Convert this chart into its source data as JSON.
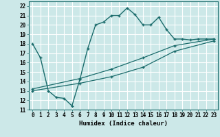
{
  "xlabel": "Humidex (Indice chaleur)",
  "xlim": [
    -0.5,
    23.5
  ],
  "ylim": [
    11,
    22.5
  ],
  "yticks": [
    11,
    12,
    13,
    14,
    15,
    16,
    17,
    18,
    19,
    20,
    21,
    22
  ],
  "xticks": [
    0,
    1,
    2,
    3,
    4,
    5,
    6,
    7,
    8,
    9,
    10,
    11,
    12,
    13,
    14,
    15,
    16,
    17,
    18,
    19,
    20,
    21,
    22,
    23
  ],
  "bg_color": "#cce8e8",
  "grid_color": "#ffffff",
  "line_color": "#1a6b6b",
  "line1_x": [
    0,
    1,
    2,
    3,
    4,
    5,
    6,
    7,
    8,
    9,
    10,
    11,
    12,
    13,
    14,
    15,
    16,
    17,
    18,
    19,
    20,
    21,
    22,
    23
  ],
  "line1_y": [
    18.0,
    16.5,
    13.0,
    12.3,
    12.2,
    11.4,
    14.2,
    17.5,
    20.0,
    20.3,
    21.0,
    21.0,
    21.8,
    21.1,
    20.0,
    20.0,
    20.8,
    19.5,
    18.5,
    18.5,
    18.4,
    18.5,
    18.5,
    18.5
  ],
  "line2_x": [
    0,
    6,
    10,
    14,
    18,
    23
  ],
  "line2_y": [
    13.0,
    13.8,
    14.5,
    15.5,
    17.2,
    18.3
  ],
  "line3_x": [
    0,
    6,
    10,
    14,
    18,
    23
  ],
  "line3_y": [
    13.2,
    14.3,
    15.3,
    16.5,
    17.8,
    18.5
  ],
  "tick_fontsize": 5.5,
  "xlabel_fontsize": 6.5
}
